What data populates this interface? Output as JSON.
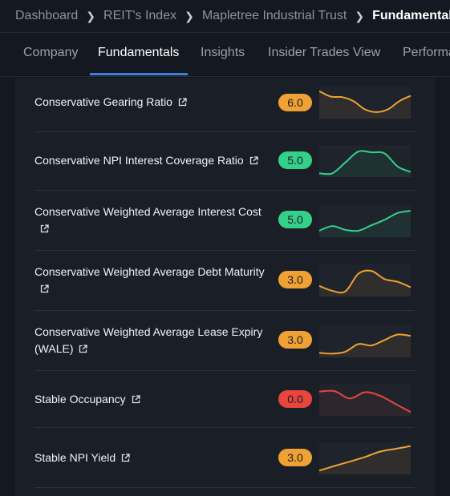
{
  "breadcrumb": {
    "items": [
      "Dashboard",
      "REIT's Index",
      "Mapletree Industrial Trust"
    ],
    "current": "Fundamentals"
  },
  "tabs": [
    "Company",
    "Fundamentals",
    "Insights",
    "Insider Trades View",
    "Performance"
  ],
  "active_tab": "Fundamentals",
  "colors": {
    "orange": "#f0a136",
    "green": "#34d08a",
    "red": "#e8453c",
    "accent": "#3d7fd9"
  },
  "metrics": [
    {
      "label": "Conservative Gearing Ratio",
      "score": "6.0",
      "color": "orange",
      "icon": "external-link-icon",
      "trend": [
        0.92,
        0.72,
        0.7,
        0.55,
        0.25,
        0.15,
        0.25,
        0.55,
        0.75
      ]
    },
    {
      "label": "Conservative NPI Interest Coverage Ratio",
      "score": "5.0",
      "color": "green",
      "icon": "external-link-icon",
      "trend": [
        0.05,
        0.05,
        0.45,
        0.85,
        0.82,
        0.78,
        0.3,
        0.1
      ]
    },
    {
      "label": "Conservative Weighted Average Interest Cost",
      "score": "5.0",
      "color": "green",
      "icon": "external-link-icon",
      "trend": [
        0.15,
        0.32,
        0.18,
        0.15,
        0.35,
        0.55,
        0.8,
        0.88
      ]
    },
    {
      "label": "Conservative Weighted Average Debt Maturity",
      "score": "3.0",
      "color": "orange",
      "icon": "external-link-icon",
      "trend": [
        0.3,
        0.12,
        0.1,
        0.75,
        0.85,
        0.55,
        0.45,
        0.25
      ]
    },
    {
      "label": "Conservative Weighted Average Lease Expiry (WALE)",
      "score": "3.0",
      "color": "orange",
      "icon": "external-link-icon",
      "trend": [
        0.08,
        0.05,
        0.12,
        0.4,
        0.35,
        0.55,
        0.75,
        0.7
      ]
    },
    {
      "label": "Stable Occupancy",
      "score": "0.0",
      "color": "red",
      "icon": "external-link-icon",
      "trend": [
        0.8,
        0.82,
        0.55,
        0.78,
        0.65,
        0.35,
        0.05
      ]
    },
    {
      "label": "Stable NPI Yield",
      "score": "3.0",
      "color": "orange",
      "icon": "external-link-icon",
      "trend": [
        0.05,
        0.22,
        0.38,
        0.55,
        0.75,
        0.85,
        0.95
      ]
    }
  ]
}
